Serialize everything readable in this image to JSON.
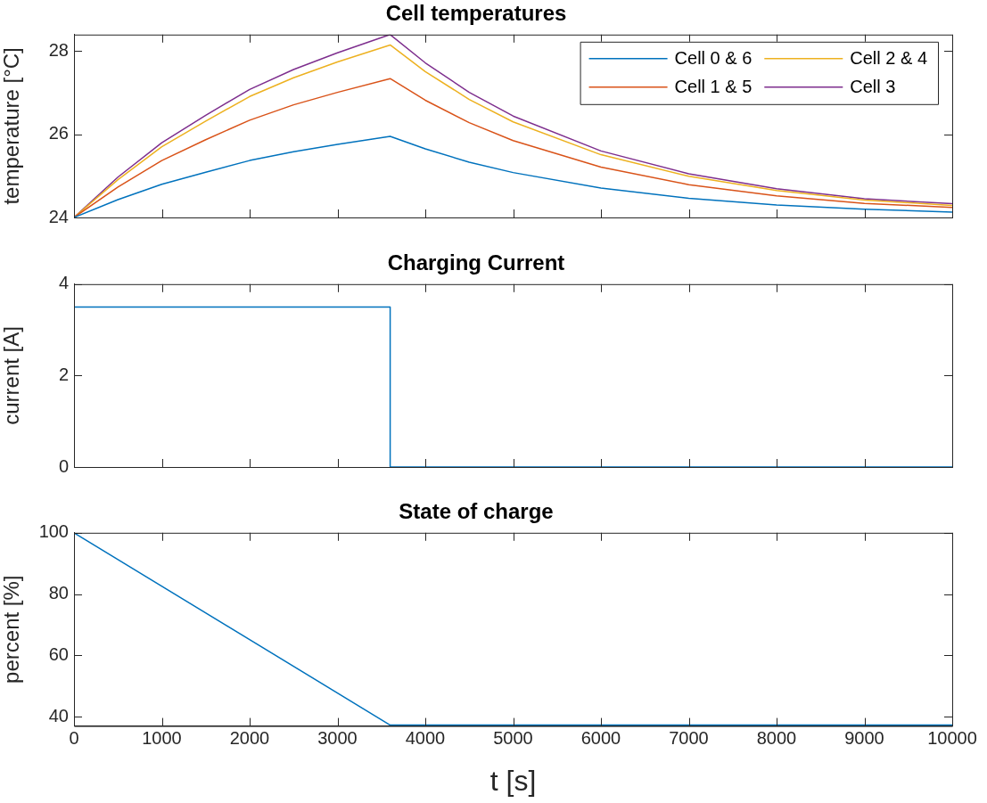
{
  "chart_data": [
    {
      "type": "line",
      "title": "Cell temperatures",
      "ylabel": "temperature [°C]",
      "x": [
        0,
        500,
        1000,
        1500,
        2000,
        2500,
        3000,
        3600,
        4000,
        4500,
        5000,
        6000,
        7000,
        8000,
        9000,
        10000
      ],
      "xlim": [
        0,
        10000
      ],
      "xticks": [
        0,
        1000,
        2000,
        3000,
        4000,
        5000,
        6000,
        7000,
        8000,
        9000,
        10000
      ],
      "ylim": [
        24,
        28.4
      ],
      "yticks": [
        24,
        26,
        28
      ],
      "tick_labels": "y",
      "grid": false,
      "legend": "top right",
      "marker": "none",
      "line_style": "solid",
      "series": [
        {
          "name": "Cell 0 & 6",
          "color": "#0072bd",
          "values": [
            24,
            24.43,
            24.8,
            25.09,
            25.37,
            25.58,
            25.76,
            25.95,
            25.65,
            25.33,
            25.08,
            24.71,
            24.46,
            24.3,
            24.2,
            24.13
          ]
        },
        {
          "name": "Cell 1 & 5",
          "color": "#d95319",
          "values": [
            24,
            24.73,
            25.37,
            25.87,
            26.34,
            26.71,
            27.01,
            27.34,
            26.82,
            26.28,
            25.85,
            25.21,
            24.79,
            24.52,
            24.34,
            24.24
          ]
        },
        {
          "name": "Cell 2 & 4",
          "color": "#edb120",
          "values": [
            24,
            24.91,
            25.7,
            26.32,
            26.91,
            27.36,
            27.74,
            28.15,
            27.51,
            26.84,
            26.3,
            25.51,
            24.99,
            24.65,
            24.42,
            24.29
          ]
        },
        {
          "name": "Cell 3",
          "color": "#7e2f8e",
          "values": [
            24,
            24.97,
            25.8,
            26.46,
            27.08,
            27.56,
            27.96,
            28.4,
            27.72,
            27.01,
            26.44,
            25.6,
            25.05,
            24.69,
            24.45,
            24.33
          ]
        }
      ]
    },
    {
      "type": "line",
      "title": "Charging Current",
      "ylabel": "current [A]",
      "x": [
        0,
        3600,
        3600,
        10000
      ],
      "xlim": [
        0,
        10000
      ],
      "xticks": [
        0,
        1000,
        2000,
        3000,
        4000,
        5000,
        6000,
        7000,
        8000,
        9000,
        10000
      ],
      "ylim": [
        0,
        4
      ],
      "yticks": [
        0,
        2,
        4
      ],
      "tick_labels": "y",
      "grid": false,
      "legend": false,
      "marker": "none",
      "line_style": "solid",
      "series": [
        {
          "color": "#0072bd",
          "values": [
            3.5,
            3.5,
            0,
            0
          ]
        }
      ]
    },
    {
      "type": "line",
      "title": "State of charge",
      "ylabel": "percent [%]",
      "xlabel": "t [s]",
      "x": [
        0,
        3600,
        10000
      ],
      "xlim": [
        0,
        10000
      ],
      "xticks": [
        0,
        1000,
        2000,
        3000,
        4000,
        5000,
        6000,
        7000,
        8000,
        9000,
        10000
      ],
      "ylim": [
        37,
        100
      ],
      "yticks": [
        40,
        60,
        80,
        100
      ],
      "grid": false,
      "legend": false,
      "marker": "none",
      "line_style": "solid",
      "series": [
        {
          "color": "#0072bd",
          "values": [
            100,
            37.3,
            37.3
          ]
        }
      ]
    }
  ]
}
